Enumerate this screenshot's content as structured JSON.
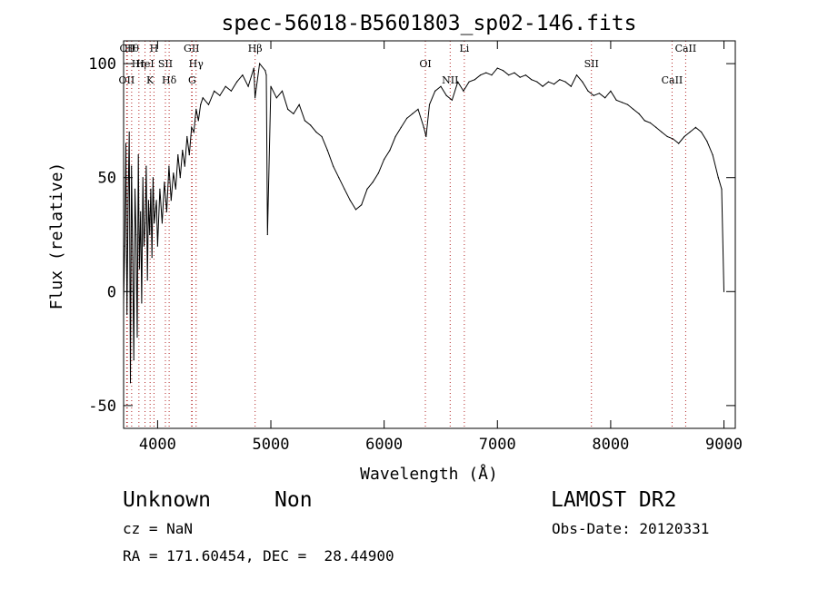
{
  "chart_data": {
    "type": "line",
    "title": "spec-56018-B5601803_sp02-146.fits",
    "xlabel": "Wavelength (Å)",
    "ylabel": "Flux (relative)",
    "xlim": [
      3700,
      9100
    ],
    "ylim": [
      -60,
      110
    ],
    "xticks": [
      4000,
      5000,
      6000,
      7000,
      8000,
      9000
    ],
    "yticks": [
      -50,
      0,
      50,
      100
    ],
    "grid": false,
    "color": "#000000",
    "line_marker_color": "#b22222",
    "series": [
      {
        "x": [
          3700,
          3710,
          3720,
          3730,
          3740,
          3750,
          3760,
          3770,
          3780,
          3790,
          3800,
          3810,
          3820,
          3830,
          3840,
          3850,
          3860,
          3870,
          3880,
          3890,
          3900,
          3910,
          3920,
          3930,
          3940,
          3950,
          3960,
          3970,
          3980,
          3990,
          4000,
          4020,
          4040,
          4060,
          4080,
          4100,
          4120,
          4140,
          4160,
          4180,
          4200,
          4220,
          4240,
          4260,
          4280,
          4300,
          4320,
          4340,
          4360,
          4380,
          4400,
          4450,
          4500,
          4550,
          4600,
          4650,
          4700,
          4750,
          4800,
          4850,
          4860,
          4900,
          4950,
          4960,
          4970,
          5000,
          5050,
          5100,
          5150,
          5200,
          5250,
          5300,
          5350,
          5400,
          5450,
          5500,
          5550,
          5600,
          5650,
          5700,
          5750,
          5800,
          5850,
          5900,
          5950,
          6000,
          6050,
          6100,
          6150,
          6200,
          6250,
          6300,
          6350,
          6370,
          6400,
          6450,
          6500,
          6550,
          6600,
          6650,
          6700,
          6750,
          6800,
          6850,
          6900,
          6950,
          7000,
          7050,
          7100,
          7150,
          7200,
          7250,
          7300,
          7350,
          7400,
          7450,
          7500,
          7550,
          7600,
          7650,
          7700,
          7750,
          7800,
          7850,
          7900,
          7950,
          8000,
          8050,
          8100,
          8150,
          8200,
          8250,
          8300,
          8350,
          8400,
          8450,
          8500,
          8550,
          8600,
          8650,
          8700,
          8750,
          8800,
          8850,
          8900,
          8950,
          8980,
          9000
        ],
        "y": [
          -5,
          20,
          65,
          -10,
          40,
          70,
          -40,
          55,
          15,
          -30,
          45,
          25,
          -20,
          60,
          10,
          35,
          -5,
          50,
          20,
          30,
          55,
          5,
          40,
          25,
          45,
          15,
          50,
          30,
          35,
          40,
          20,
          45,
          30,
          48,
          35,
          55,
          40,
          52,
          45,
          60,
          50,
          62,
          55,
          68,
          60,
          72,
          70,
          80,
          75,
          82,
          85,
          82,
          88,
          86,
          90,
          88,
          92,
          95,
          90,
          98,
          85,
          100,
          97,
          95,
          25,
          90,
          85,
          88,
          80,
          78,
          82,
          75,
          73,
          70,
          68,
          62,
          55,
          50,
          45,
          40,
          36,
          38,
          45,
          48,
          52,
          58,
          62,
          68,
          72,
          76,
          78,
          80,
          72,
          68,
          82,
          88,
          90,
          86,
          84,
          92,
          88,
          92,
          93,
          95,
          96,
          95,
          98,
          97,
          95,
          96,
          94,
          95,
          93,
          92,
          90,
          92,
          91,
          93,
          92,
          90,
          95,
          92,
          88,
          86,
          87,
          85,
          88,
          84,
          83,
          82,
          80,
          78,
          75,
          74,
          72,
          70,
          68,
          67,
          65,
          68,
          70,
          72,
          70,
          66,
          60,
          50,
          45,
          0
        ]
      }
    ],
    "line_ids": [
      {
        "label": "Hθ",
        "x": 3771
      },
      {
        "label": "Hη",
        "x": 3835
      },
      {
        "label": "OII",
        "x": 3727
      },
      {
        "label": "CII",
        "x": 3733
      },
      {
        "label": "HeI",
        "x": 3889
      },
      {
        "label": "K",
        "x": 3934
      },
      {
        "label": "H",
        "x": 3968
      },
      {
        "label": "SII",
        "x": 4069
      },
      {
        "label": "Hδ",
        "x": 4102
      },
      {
        "label": "GII",
        "x": 4300
      },
      {
        "label": "Hγ",
        "x": 4340
      },
      {
        "label": "G",
        "x": 4305
      },
      {
        "label": "Hβ",
        "x": 4861
      },
      {
        "label": "OI",
        "x": 6364
      },
      {
        "label": "NII",
        "x": 6583
      },
      {
        "label": "Li",
        "x": 6708
      },
      {
        "label": "SII",
        "x": 7830
      },
      {
        "label": "CaII",
        "x": 8542
      },
      {
        "label": "CaII",
        "x": 8662
      }
    ]
  },
  "info": {
    "class": "Unknown",
    "subclass": "Non",
    "survey": "LAMOST DR2",
    "cz": "cz = NaN",
    "obs_date": "Obs-Date: 20120331",
    "radec": "RA = 171.60454, DEC =  28.44900"
  }
}
